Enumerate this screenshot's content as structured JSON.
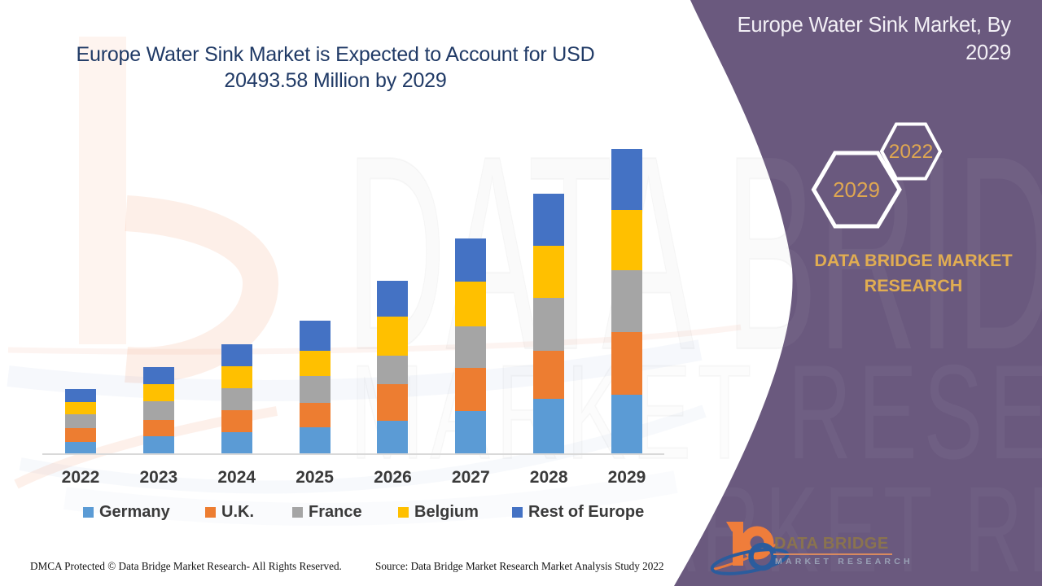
{
  "chart_title_line1": "Europe Water Sink Market is Expected to Account for USD",
  "chart_title_line2": "20493.58 Million by 2029",
  "panel": {
    "title_line1": "Europe Water Sink Market, By",
    "title_line2": "2029",
    "hexagon_left_label": "2029",
    "hexagon_right_label": "2022",
    "brand_line1": "DATA BRIDGE MARKET",
    "brand_line2": "RESEARCH",
    "background_color": "#6A597E",
    "gold_color": "#DFA751"
  },
  "chart_data": {
    "type": "bar",
    "stacked": true,
    "unit": "USD Million",
    "categories": [
      "2022",
      "2023",
      "2024",
      "2025",
      "2026",
      "2027",
      "2028",
      "2029"
    ],
    "series": [
      {
        "name": "Germany",
        "color": "#5B9BD5",
        "values": [
          767,
          1151,
          1425,
          1754,
          2192,
          2850,
          3672,
          3946
        ]
      },
      {
        "name": "U.K.",
        "color": "#ED7D31",
        "values": [
          932,
          1096,
          1480,
          1644,
          2466,
          2904,
          3233,
          4220
        ]
      },
      {
        "name": "France",
        "color": "#A5A5A5",
        "values": [
          932,
          1260,
          1480,
          1808,
          1918,
          2795,
          3562,
          4165
        ]
      },
      {
        "name": "Belgium",
        "color": "#FFC000",
        "values": [
          822,
          1151,
          1480,
          1699,
          2630,
          3014,
          3507,
          4055
        ]
      },
      {
        "name": "Rest of Europe",
        "color": "#4472C4",
        "values": [
          877,
          1151,
          1480,
          2028,
          2411,
          2904,
          3507,
          4110
        ]
      }
    ],
    "title": "Europe Water Sink Market is Expected to Account for USD 20493.58 Million by 2029",
    "xlabel": "",
    "ylabel": "",
    "ylim": [
      0,
      20500
    ],
    "grid": false,
    "legend_position": "bottom"
  },
  "footer": {
    "dmca": "DMCA Protected © Data Bridge Market Research- All Rights Reserved.",
    "source": "Source: Data Bridge Market Research Market Analysis Study 2022"
  },
  "logo": {
    "name": "DATA BRIDGE",
    "subtitle": "MARKET RESEARCH"
  },
  "watermark": {
    "row1": "DATA BRIDGE",
    "row2": "MARKET RESEARCH"
  }
}
